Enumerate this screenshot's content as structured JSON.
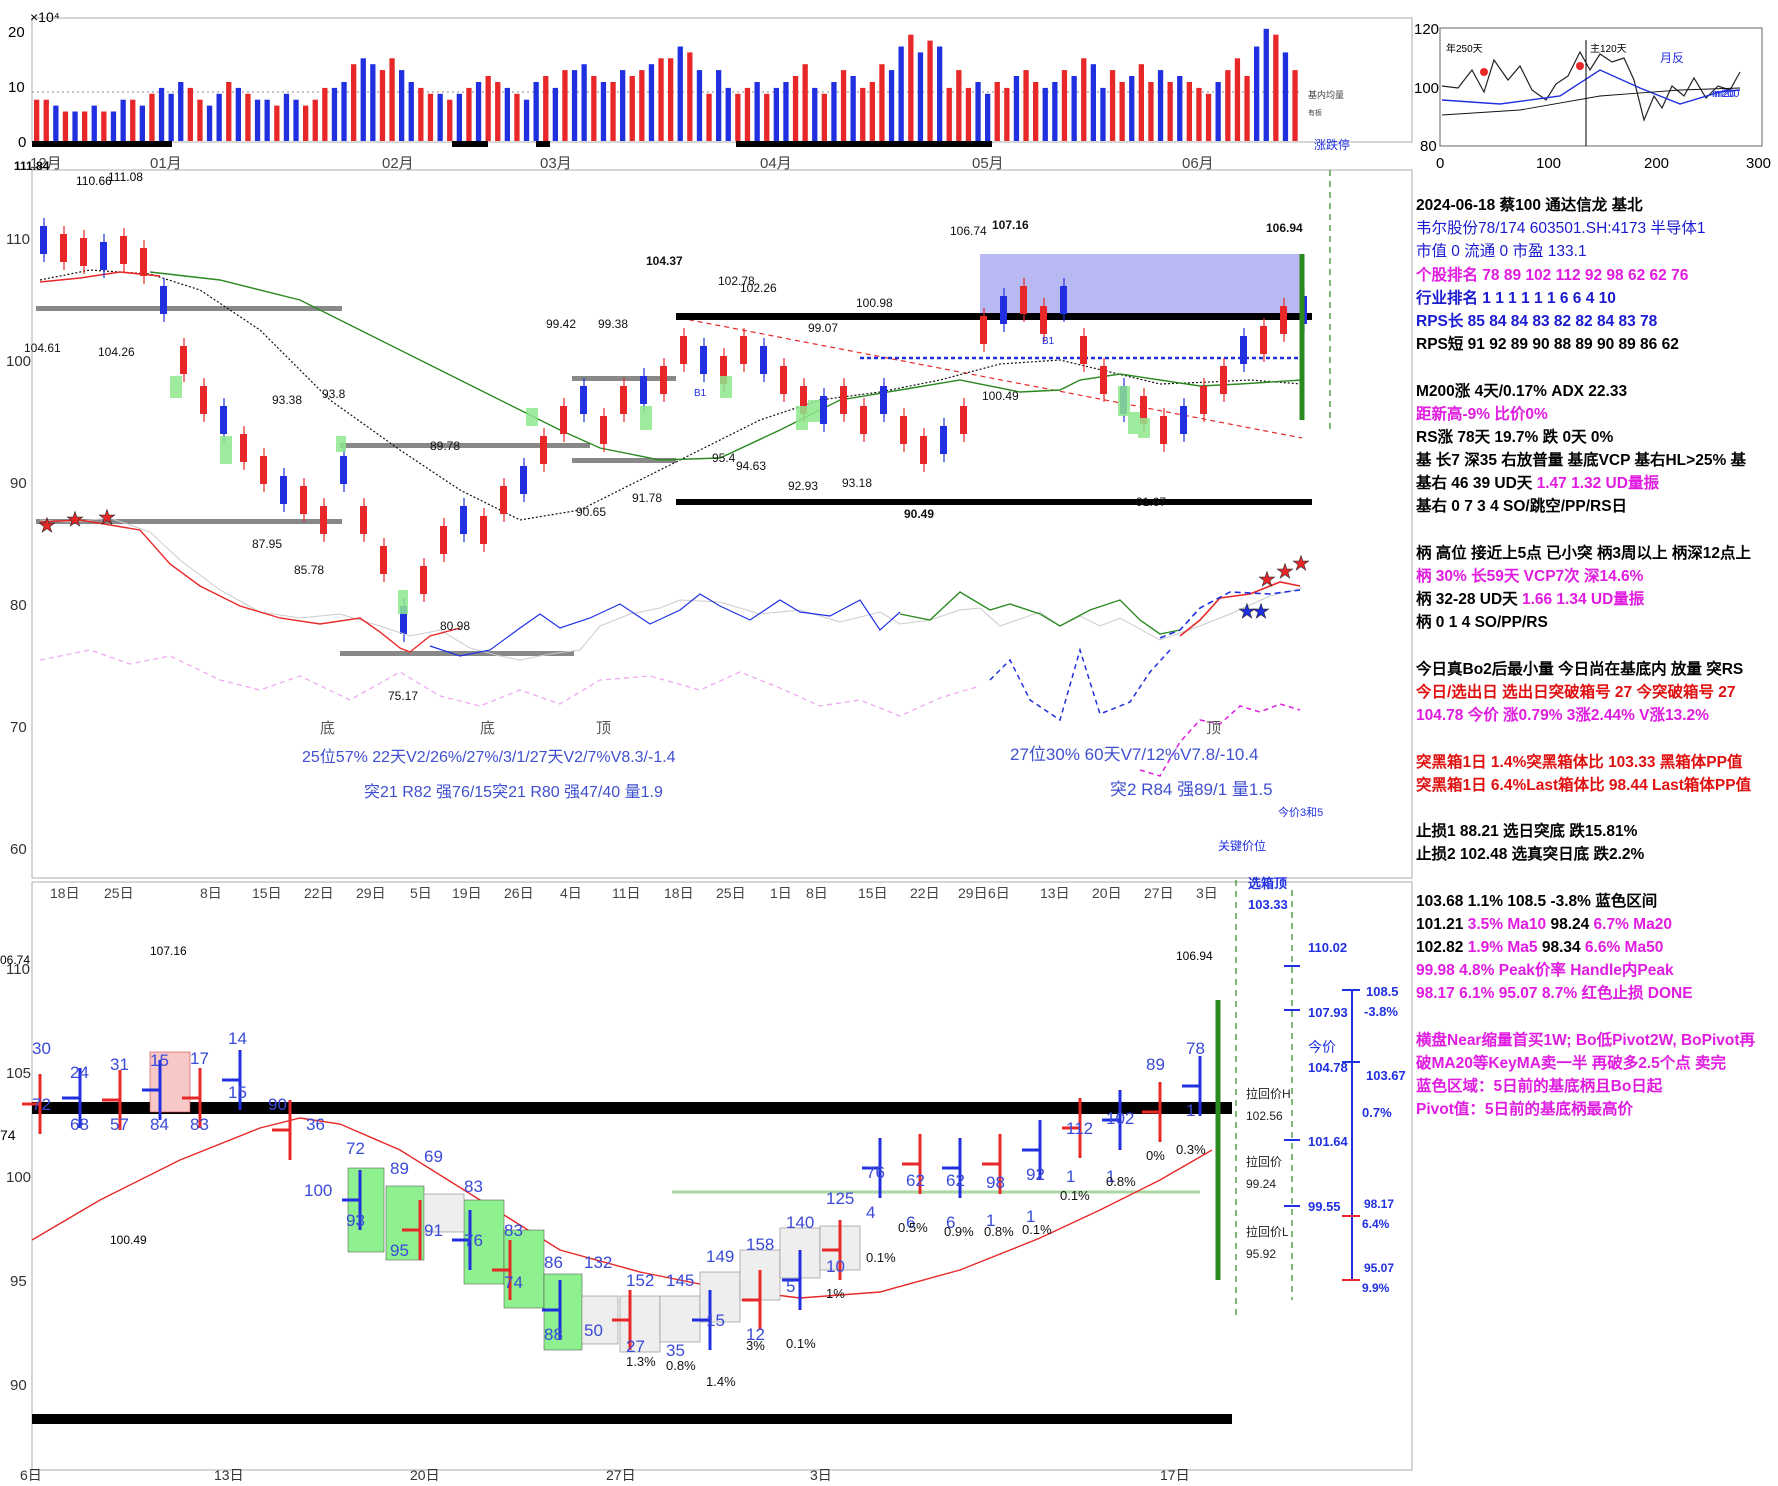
{
  "volume_panel": {
    "exponent_label": "×10⁴",
    "y_ticks": [
      "20",
      "10",
      "0"
    ],
    "month_labels": [
      "12月",
      "01月",
      "02月",
      "03月",
      "04月",
      "05月",
      "06月"
    ],
    "avg_label": "基内均量",
    "small_label": "有板",
    "limit_label": "涨跌停",
    "volume": [
      7,
      7,
      6,
      5,
      5,
      5,
      6,
      5,
      5,
      7,
      7,
      6,
      8,
      9,
      8,
      10,
      9,
      7,
      6,
      8,
      10,
      9,
      8,
      7,
      7,
      6,
      8,
      7,
      6,
      7,
      9,
      9,
      10,
      13,
      14,
      13,
      12,
      14,
      12,
      10,
      9,
      8,
      8,
      7,
      8,
      9,
      10,
      11,
      10,
      9,
      8,
      7,
      10,
      11,
      9,
      12,
      12,
      13,
      11,
      10,
      10,
      12,
      11,
      12,
      13,
      14,
      14,
      16,
      15,
      12,
      8,
      12,
      9,
      8,
      9,
      10,
      8,
      9,
      10,
      11,
      13,
      9,
      8,
      10,
      12,
      11,
      9,
      10,
      13,
      12,
      16,
      18,
      15,
      17,
      16,
      9,
      12,
      9,
      10,
      8,
      10,
      9,
      11,
      12,
      10,
      9,
      10,
      12,
      11,
      14,
      13,
      9,
      12,
      10,
      11,
      13,
      10,
      12,
      10,
      11,
      10,
      9,
      8,
      10,
      12,
      14,
      11,
      16,
      19,
      18,
      15,
      12
    ],
    "up": [
      1,
      1,
      0,
      1,
      0,
      1,
      0,
      1,
      0,
      0,
      1,
      0,
      1,
      0,
      0,
      0,
      1,
      1,
      0,
      0,
      1,
      0,
      1,
      0,
      0,
      1,
      0,
      0,
      1,
      1,
      1,
      0,
      0,
      1,
      0,
      0,
      1,
      1,
      0,
      0,
      1,
      1,
      0,
      1,
      0,
      1,
      0,
      1,
      1,
      0,
      1,
      0,
      0,
      1,
      0,
      1,
      0,
      0,
      1,
      0,
      1,
      0,
      1,
      1,
      0,
      1,
      1,
      0,
      1,
      0,
      1,
      0,
      0,
      1,
      1,
      0,
      1,
      0,
      0,
      1,
      1,
      0,
      1,
      0,
      1,
      0,
      1,
      1,
      1,
      0,
      0,
      1,
      0,
      1,
      0,
      1,
      1,
      1,
      0,
      0,
      1,
      1,
      0,
      1,
      1,
      0,
      0,
      1,
      0,
      1,
      0,
      0,
      1,
      1,
      0,
      1,
      1,
      0,
      1,
      0,
      1,
      1,
      1,
      0,
      1,
      1,
      1,
      0,
      0,
      1,
      0,
      1
    ]
  },
  "inset": {
    "y_ticks": [
      "120",
      "100",
      "80"
    ],
    "x_ticks": [
      "0",
      "100",
      "200",
      "300"
    ],
    "labels": [
      "年250天",
      "主120天",
      "月反",
      "m200",
      "m20"
    ]
  },
  "main_panel": {
    "y_ticks": [
      "110",
      "100",
      "90",
      "80",
      "70",
      "60"
    ],
    "x_ticks": [
      "18日",
      "25日",
      "8日",
      "15日",
      "22日",
      "29日",
      "5日",
      "19日",
      "26日",
      "4日",
      "11日",
      "18日",
      "25日",
      "1日",
      "8日",
      "15日",
      "22日",
      "29日",
      "6日",
      "13日",
      "20日",
      "27日",
      "3日"
    ],
    "top_left_labels": [
      "111.84",
      "110.66",
      "111.08"
    ],
    "price_labels": [
      "104.61",
      "104.26",
      "93.38",
      "93.8",
      "87.95",
      "85.78",
      "80.98",
      "75.17",
      "89.78",
      "90.65",
      "99.42",
      "99.38",
      "104.37",
      "102.78",
      "102.26",
      "91.78",
      "95.4",
      "94.63",
      "92.93",
      "93.18",
      "90.49",
      "99.07",
      "100.98",
      "100.49",
      "106.74",
      "107.16",
      "106.94",
      "91.67"
    ],
    "pattern_labels": [
      "底",
      "底",
      "顶",
      "顶"
    ],
    "stat_text_1": "25位57%  22天V2/26%/27%/3/1/27天V2/7%V8.3/-1.4",
    "stat_text_2": "突21 R82 强76/15突21 R80 强47/40 量1.9",
    "stat_text_3": "27位30%  60天V7/12%V7.8/-10.4",
    "stat_text_4": "突2 R84 强89/1 量1.5",
    "small_labels": [
      "今价3和5",
      "关键价位",
      "B1",
      "B1"
    ]
  },
  "bottom_panel": {
    "y_ticks": [
      "110",
      "105",
      "100",
      "95",
      "90"
    ],
    "x_ticks": [
      "6日",
      "13日",
      "20日",
      "27日",
      "3日",
      "17日"
    ],
    "left_labels": [
      "06.74",
      "74"
    ],
    "price_labels": [
      "107.16",
      "100.49",
      "106.94",
      "91.67"
    ],
    "box_numbers": [
      "30",
      "72",
      "24",
      "68",
      "31",
      "57",
      "15",
      "84",
      "17",
      "83",
      "14",
      "15",
      "90",
      "36",
      "100",
      "72",
      "93",
      "89",
      "95",
      "69",
      "91",
      "83",
      "76",
      "83",
      "74",
      "86",
      "88",
      "132",
      "50",
      "152",
      "27",
      "145",
      "35",
      "149",
      "15",
      "158",
      "12",
      "140",
      "5",
      "125",
      "10",
      "76",
      "4",
      "62",
      "6",
      "62",
      "6",
      "98",
      "1",
      "92",
      "1",
      "112",
      "1",
      "102",
      "1",
      "89",
      "78",
      "1"
    ],
    "pct_labels": [
      "1.3%",
      "0.8%",
      "1.4%",
      "3%",
      "0.1%",
      "1%",
      "0.1%",
      "0.5%",
      "0.9%",
      "0.8%",
      "0.1%",
      "0.1%",
      "0.8%",
      "0%",
      "0.3%"
    ],
    "right_labels": {
      "xuanxiang_title": "选箱顶",
      "xuanxiang_value": "103.33",
      "v110": "110.02",
      "v107": "107.93",
      "jinjia": "今价",
      "jinjia_value": "104.78",
      "v101": "101.64",
      "v99": "99.55",
      "huijia_h": "拉回价H",
      "huijia_h_value": "102.56",
      "huijia": "拉回价",
      "huijia_value": "99.24",
      "huijia_l": "拉回价L",
      "huijia_l_value": "95.92",
      "r1085": "108.5",
      "r38": "-3.8%",
      "r10367": "103.67",
      "r07": "0.7%",
      "r9817": "98.17",
      "r64": "6.4%",
      "r9507": "95.07",
      "r99": "9.9%"
    }
  },
  "info": {
    "l1": "2024-06-18 蔡100 通达信龙 基北",
    "l2": "韦尔股份78/174 603501.SH:4173 半导体1",
    "l3": "市值 0  流通 0 市盈 133.1",
    "l4": " 个股排名 78  89  102  112  92  98  62  62  76",
    "l5": " 行业排名 1   1   1   1   1   1   6   6   4   10",
    "l6": " RPS长 85  84  84  83  82  82  84  83  78",
    "l7": " RPS短 91  92  89  90  88  89  90  89  86  62",
    "l8": "M200涨 4天/0.17%  ADX 22.33",
    "l9": "距新高-9%  比价0%",
    "l10": "RS涨 78天 19.7% 跌 0天 0%",
    "l11": "基 长7 深35 右放普量 基底VCP 基右HL>25% 基",
    "l12a": "基右 46 39 UD天 ",
    "l12b": "1.47 1.32 UD量振",
    "l13": "基右 0 7 3 4 SO/跳空/PP/RS日",
    "l14": "柄 高位 接近上5点 已小突 柄3周以上 柄深12点上",
    "l15": "柄 30% 长59天  VCP7次 深14.6%",
    "l16a": "柄 32-28 UD天 ",
    "l16b": "1.66 1.34 UD量振",
    "l17": "柄 0 1 4 SO/PP/RS",
    "l18": "今日真Bo2后最小量 今日尚在基底内 放量 突RS",
    "l19": "今日/选出日  选出日突破箱号 27 今突破箱号 27",
    "l20": "104.78 今价  涨0.79% 3涨2.44% V涨13.2%",
    "l21": "突黑箱1日 1.4%突黑箱体比 103.33 黑箱体PP值",
    "l22": "突黑箱1日 6.4%Last箱体比 98.44 Last箱体PP值",
    "l23": "止损1 88.21 选日突底 跌15.81%",
    "l24": "止损2 102.48 选真突日底 跌2.2%",
    "l25": "103.68 1.1% 108.5 -3.8% 蓝色区间",
    "l26a": "  101.21 ",
    "l26b": "3.5% Ma10",
    "l26c": "  98.24 ",
    "l26d": "6.7% Ma20",
    "l27a": "  102.82 ",
    "l27b": "1.9% Ma5",
    "l27c": "  98.34 ",
    "l27d": "6.6% Ma50",
    "l28": "99.98 4.8% Peak价率  Handle内Peak",
    "l29": "98.17 6.1% 95.07 8.7% 红色止损 DONE",
    "l30": "横盘Near缩量首买1W; Bo低Pivot2W, BoPivot再",
    "l31": " 破MA20等KeyMA卖一半 再破多2.5个点 卖完",
    "l32": "蓝色区域：5日前的基底柄且Bo日起",
    "l33": "Pivot值：5日前的基底柄最高价"
  },
  "colors": {
    "up": "#e82828",
    "down": "#2030e0",
    "ma_green": "#2a8a20",
    "base_blue_zone": "#a8a8f0"
  }
}
